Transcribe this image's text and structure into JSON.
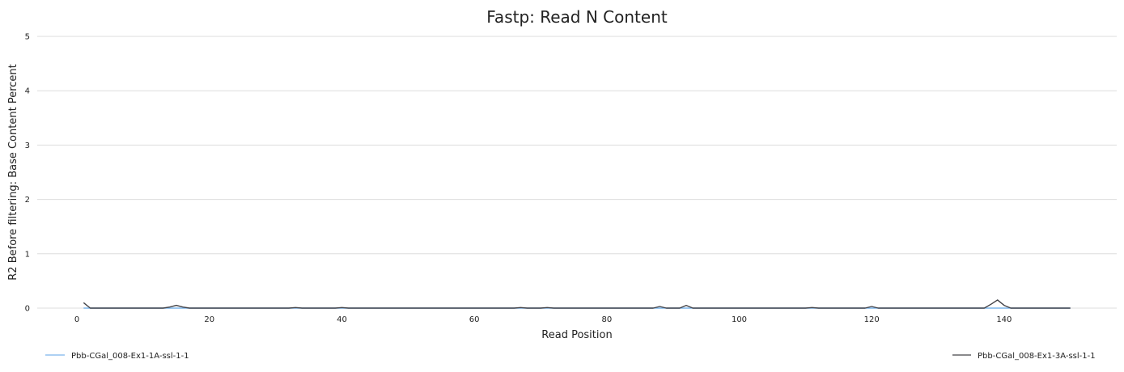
{
  "chart_data": {
    "type": "line",
    "title": "Fastp: Read N Content",
    "xlabel": "Read Position",
    "ylabel": "R2 Before filtering: Base Content Percent",
    "xlim": [
      -6,
      157
    ],
    "ylim": [
      0,
      5
    ],
    "xticks": [
      "0",
      "20",
      "40",
      "60",
      "80",
      "100",
      "120",
      "140"
    ],
    "xtick_values": [
      0,
      20,
      40,
      60,
      80,
      100,
      120,
      140
    ],
    "yticks": [
      "0",
      "1",
      "2",
      "3",
      "4",
      "5"
    ],
    "ytick_values": [
      0,
      1,
      2,
      3,
      4,
      5
    ],
    "grid": "horizontal",
    "legend_placement": "bottom",
    "series": [
      {
        "name": "Pbb-CGal_008-Ex1-1A-ssl-1-1",
        "color": "#7cb5ec",
        "x": [
          1,
          10,
          20,
          30,
          40,
          50,
          60,
          70,
          80,
          90,
          100,
          110,
          120,
          130,
          140,
          150
        ],
        "y": [
          0,
          0,
          0,
          0,
          0,
          0,
          0,
          0,
          0,
          0,
          0,
          0,
          0,
          0,
          0,
          0
        ]
      },
      {
        "name": "Pbb-CGal_008-Ex1-3A-ssl-1-1",
        "color": "#434348",
        "x": [
          1,
          2,
          13,
          14,
          15,
          16,
          17,
          32,
          33,
          34,
          39,
          40,
          41,
          66,
          67,
          68,
          70,
          71,
          72,
          87,
          88,
          89,
          91,
          92,
          93,
          110,
          111,
          112,
          119,
          120,
          121,
          137,
          138,
          139,
          140,
          141,
          150
        ],
        "y": [
          0.1,
          0,
          0,
          0.02,
          0.05,
          0.02,
          0,
          0,
          0.01,
          0,
          0,
          0.01,
          0,
          0,
          0.01,
          0,
          0,
          0.01,
          0,
          0,
          0.03,
          0,
          0,
          0.05,
          0,
          0,
          0.01,
          0,
          0,
          0.03,
          0,
          0,
          0.07,
          0.15,
          0.05,
          0,
          0
        ]
      }
    ]
  }
}
